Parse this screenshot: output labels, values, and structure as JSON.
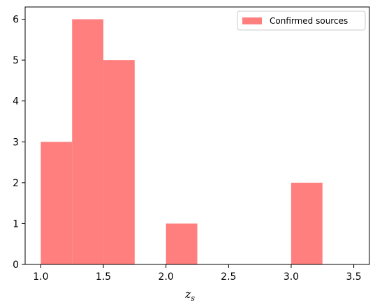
{
  "chart_data": {
    "type": "bar",
    "bins": [
      {
        "start": 1.0,
        "end": 1.25,
        "count": 3
      },
      {
        "start": 1.25,
        "end": 1.5,
        "count": 6
      },
      {
        "start": 1.5,
        "end": 1.75,
        "count": 5
      },
      {
        "start": 1.75,
        "end": 2.0,
        "count": 0
      },
      {
        "start": 2.0,
        "end": 2.25,
        "count": 1
      },
      {
        "start": 2.25,
        "end": 2.5,
        "count": 0
      },
      {
        "start": 2.5,
        "end": 2.75,
        "count": 0
      },
      {
        "start": 2.75,
        "end": 3.0,
        "count": 0
      },
      {
        "start": 3.0,
        "end": 3.25,
        "count": 2
      },
      {
        "start": 3.25,
        "end": 3.5,
        "count": 0
      }
    ],
    "series": [
      {
        "name": "Confirmed sources",
        "color": "#ff7f7f"
      }
    ],
    "xlabel": "z",
    "xlabel_subscript": "s",
    "ylabel": "",
    "title": "",
    "xlim": [
      0.875,
      3.625
    ],
    "ylim": [
      0,
      6.3
    ],
    "xticks": [
      1.0,
      1.5,
      2.0,
      2.5,
      3.0,
      3.5
    ],
    "xtick_labels": [
      "1.0",
      "1.5",
      "2.0",
      "2.5",
      "3.0",
      "3.5"
    ],
    "yticks": [
      0,
      1,
      2,
      3,
      4,
      5,
      6
    ],
    "ytick_labels": [
      "0",
      "1",
      "2",
      "3",
      "4",
      "5",
      "6"
    ],
    "grid": false,
    "legend_position": "top-right"
  }
}
